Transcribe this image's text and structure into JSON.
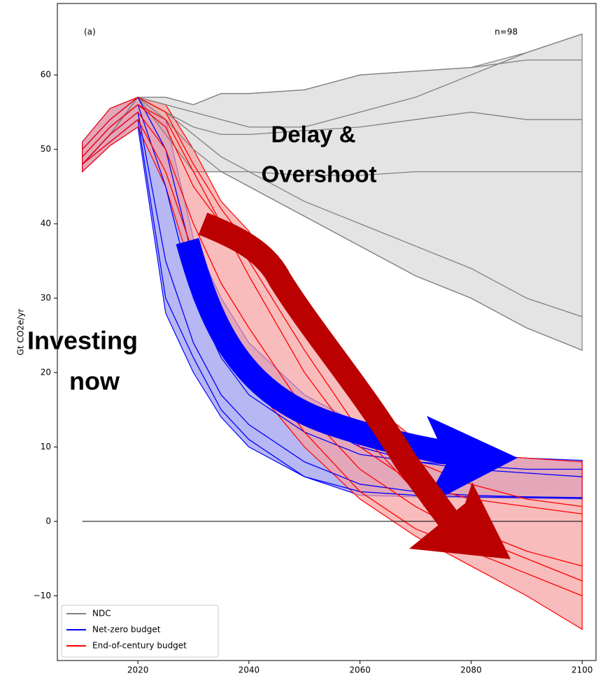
{
  "chart_data": {
    "type": "line",
    "ylabel": "Gt CO2e/yr",
    "panel_label": "(a)",
    "count_label": "n=98",
    "annotations": [
      {
        "lines": [
          "Delay &",
          "Overshoot"
        ],
        "color": "#ff0000"
      },
      {
        "lines": [
          "Investing",
          "now"
        ],
        "color": "#0000ff"
      }
    ],
    "x": [
      2010,
      2015,
      2020,
      2025,
      2030,
      2035,
      2040,
      2050,
      2060,
      2070,
      2080,
      2090,
      2100
    ],
    "xlim": [
      2005.5,
      2102.5
    ],
    "xticks": [
      2020,
      2040,
      2060,
      2080,
      2100
    ],
    "ylim": [
      -18.7,
      69.6
    ],
    "yticks": [
      {
        "value": -10,
        "label": "−10"
      },
      0,
      10,
      20,
      30,
      40,
      50,
      60
    ],
    "reference_line": {
      "y": 0,
      "x": [
        2010,
        2100
      ],
      "color": "#000000"
    },
    "legend": "lower left",
    "series": [
      {
        "name": "NDC",
        "color": "#808080",
        "band_color": "#d9d9d9",
        "band_upper": [
          48,
          52,
          57,
          57,
          56,
          57.5,
          57.5,
          58,
          60,
          60.5,
          61,
          63,
          65.5
        ],
        "band_lower": [
          48,
          52,
          57,
          52,
          47,
          47,
          45,
          41,
          37,
          33,
          30,
          26,
          23
        ],
        "lines": [
          [
            48,
            52,
            57,
            57,
            56,
            57.5,
            57.5,
            58,
            60,
            60.5,
            61,
            62,
            62
          ],
          [
            48,
            52,
            57,
            56,
            55,
            54,
            53,
            53,
            55,
            57,
            60,
            63,
            65.5
          ],
          [
            48,
            52,
            57,
            55,
            52,
            49,
            47,
            43,
            40,
            37,
            34,
            30,
            27.5
          ],
          [
            48,
            52,
            57,
            54,
            50,
            47,
            45,
            41,
            37,
            33,
            30,
            26,
            23
          ],
          [
            48,
            52,
            57,
            55,
            53,
            52,
            52,
            52.5,
            53,
            54,
            55,
            54,
            54
          ],
          [
            48,
            52,
            57,
            52,
            47,
            47,
            47,
            46.5,
            46.5,
            47,
            47,
            47,
            47
          ]
        ]
      },
      {
        "name": "Net-zero budget",
        "color": "#0000ff",
        "band_color": "#9999ee",
        "band_upper": [
          51,
          55.5,
          57,
          54,
          38,
          30,
          24,
          17,
          13,
          10,
          9,
          8.5,
          8.2
        ],
        "band_lower": [
          47,
          50.5,
          53,
          28,
          20,
          14,
          10,
          6,
          3.5,
          3.3,
          3.2,
          3.1,
          3.0
        ],
        "lines": [
          [
            49,
            53,
            56,
            45,
            30,
            22,
            17,
            12,
            9,
            8,
            7.5,
            7,
            7
          ],
          [
            48,
            52,
            55,
            35,
            24,
            17,
            13,
            8,
            5,
            4,
            3.5,
            3.3,
            3.2
          ],
          [
            50,
            54,
            57,
            50,
            35,
            26,
            20,
            14,
            10,
            8,
            7,
            6.5,
            6
          ],
          [
            48,
            51,
            54,
            30,
            22,
            15,
            11,
            6,
            4,
            3.5,
            3.3,
            3.2,
            3.1
          ]
        ]
      },
      {
        "name": "End-of-century budget",
        "color": "#ff0000",
        "band_color": "#f7a0a0",
        "band_upper": [
          51,
          55.5,
          57,
          56,
          50,
          43,
          39,
          28,
          17,
          11,
          9,
          8.5,
          8
        ],
        "band_lower": [
          47,
          50.5,
          53,
          45,
          33,
          25,
          19,
          10,
          3,
          -2,
          -6,
          -10,
          -14.5
        ],
        "lines": [
          [
            49,
            53,
            56,
            53,
            45,
            40,
            35,
            23,
            12,
            4,
            -1,
            -4,
            -6
          ],
          [
            48,
            52,
            55,
            50,
            40,
            32,
            26,
            15,
            7,
            2,
            -2,
            -5,
            -8
          ],
          [
            50,
            54,
            57,
            55,
            48,
            42,
            37,
            25,
            15,
            8,
            5,
            3,
            2
          ],
          [
            48,
            51,
            54,
            47,
            36,
            28,
            22,
            12,
            4,
            -1,
            -4,
            -7,
            -10
          ],
          [
            49,
            53,
            56,
            54,
            47,
            40,
            33,
            20,
            10,
            5,
            3,
            2,
            1
          ]
        ]
      }
    ]
  }
}
